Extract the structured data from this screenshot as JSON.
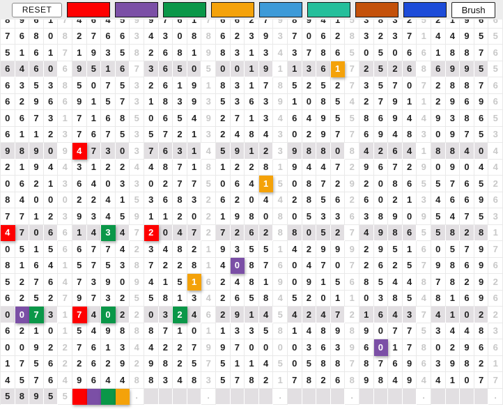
{
  "toolbar": {
    "reset_label": "RESET",
    "brush_label": "Brush",
    "swatches": [
      {
        "name": "red",
        "hex": "#fe0000"
      },
      {
        "name": "purple",
        "hex": "#7b4fa6"
      },
      {
        "name": "green",
        "hex": "#0a9748"
      },
      {
        "name": "orange",
        "hex": "#f4a20a"
      },
      {
        "name": "light-blue",
        "hex": "#3d9ad8"
      },
      {
        "name": "teal",
        "hex": "#25bf9b"
      },
      {
        "name": "chocolate",
        "hex": "#c4510a"
      },
      {
        "name": "blue",
        "hex": "#1c4bd8"
      }
    ]
  },
  "grid": {
    "columns": 35,
    "group_size": 5,
    "shaded_rows": [
      3,
      8,
      13,
      18,
      23
    ],
    "rows": [
      "89617464599761766279894153832521966",
      "76808276634308862393706283237144955",
      "51617193582681983134378650506618876",
      "64606951673650500191136172526869955",
      "63538507532619183178525273570728876",
      "62966915731839353639108542791129696",
      "06731716850654927134649558694493865",
      "61123767535721324843029776948309753",
      "98909473037631459123988084264188404",
      "21944312244871812281944729672909044",
      "06213640330277506415087292086557652",
      "84000224153683262044285626021346696",
      "77123934591120219808053363890954753",
      "47066143472047272628805274986558281",
      "05156677423482193551429992951605797",
      "81641575387228140876047072625798696",
      "52764739094151624819091568544878292",
      "62527973255813426584520110385481696",
      "00731740220324629145424721643741022",
      "62101549888710113358148989077534483",
      "00922761344227997000036396017802966",
      "17562262929825751145058878769639821",
      "45764964488348357821782689849441077",
      "58955    .    .    .    .    .    ."
    ],
    "paint_colors": {
      "red": "#fe0000",
      "purple": "#7b4fa6",
      "green": "#0a9748",
      "orange": "#f4a20a"
    },
    "painted_cells": [
      {
        "row": 3,
        "col": 23,
        "color": "orange"
      },
      {
        "row": 8,
        "col": 5,
        "color": "red"
      },
      {
        "row": 10,
        "col": 18,
        "color": "orange"
      },
      {
        "row": 13,
        "col": 0,
        "color": "red"
      },
      {
        "row": 13,
        "col": 7,
        "color": "green"
      },
      {
        "row": 13,
        "col": 10,
        "color": "red"
      },
      {
        "row": 15,
        "col": 16,
        "color": "purple"
      },
      {
        "row": 16,
        "col": 13,
        "color": "orange"
      },
      {
        "row": 18,
        "col": 1,
        "color": "purple"
      },
      {
        "row": 18,
        "col": 2,
        "color": "green"
      },
      {
        "row": 18,
        "col": 5,
        "color": "red"
      },
      {
        "row": 18,
        "col": 7,
        "color": "green"
      },
      {
        "row": 18,
        "col": 12,
        "color": "green"
      },
      {
        "row": 20,
        "col": 26,
        "color": "purple"
      },
      {
        "row": 23,
        "col": 5,
        "color": "red"
      },
      {
        "row": 23,
        "col": 6,
        "color": "purple"
      },
      {
        "row": 23,
        "col": 7,
        "color": "green"
      },
      {
        "row": 23,
        "col": 8,
        "color": "orange"
      }
    ]
  }
}
